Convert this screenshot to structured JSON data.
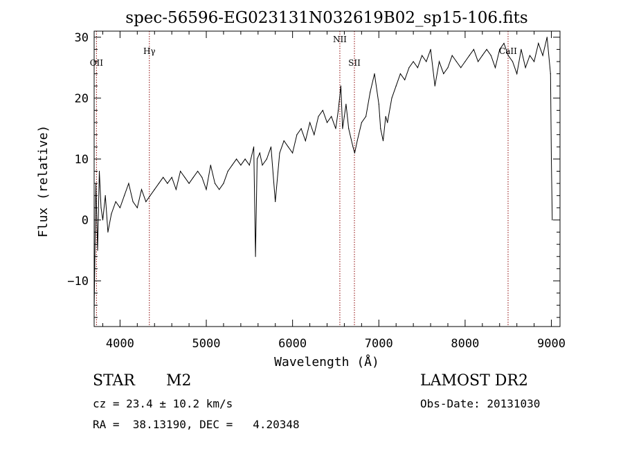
{
  "chart_data": {
    "type": "line",
    "title": "spec-56596-EG023131N032619B02_sp15-106.fits",
    "xlabel": "Wavelength (Å)",
    "ylabel": "Flux (relative)",
    "xlim": [
      3700,
      9100
    ],
    "ylim": [
      -17.5,
      31
    ],
    "grid": false,
    "x_ticks": [
      4000,
      5000,
      6000,
      7000,
      8000,
      9000
    ],
    "y_ticks": [
      -10,
      0,
      10,
      20,
      30
    ],
    "series": [
      {
        "x": [
          3700,
          3720,
          3740,
          3760,
          3780,
          3800,
          3830,
          3860,
          3900,
          3950,
          4000,
          4050,
          4100,
          4150,
          4200,
          4250,
          4300,
          4350,
          4400,
          4450,
          4500,
          4550,
          4600,
          4650,
          4700,
          4750,
          4800,
          4850,
          4900,
          4950,
          5000,
          5050,
          5100,
          5150,
          5200,
          5250,
          5300,
          5350,
          5400,
          5450,
          5500,
          5550,
          5570,
          5590,
          5620,
          5650,
          5700,
          5750,
          5800,
          5850,
          5900,
          5950,
          6000,
          6050,
          6100,
          6150,
          6200,
          6250,
          6300,
          6350,
          6400,
          6450,
          6500,
          6530,
          6560,
          6580,
          6600,
          6620,
          6650,
          6700,
          6720,
          6750,
          6800,
          6850,
          6900,
          6950,
          7000,
          7020,
          7050,
          7080,
          7100,
          7150,
          7200,
          7250,
          7300,
          7350,
          7400,
          7450,
          7500,
          7550,
          7600,
          7650,
          7700,
          7750,
          7800,
          7850,
          7900,
          7950,
          8000,
          8050,
          8100,
          8150,
          8200,
          8250,
          8300,
          8350,
          8400,
          8450,
          8500,
          8550,
          8600,
          8650,
          8700,
          8750,
          8800,
          8850,
          8900,
          8950,
          8990,
          9000,
          9010
        ],
        "y": [
          -15,
          6,
          -5,
          8,
          2,
          0,
          4,
          -2,
          1,
          3,
          2,
          4,
          6,
          3,
          2,
          5,
          3,
          4,
          5,
          6,
          7,
          6,
          7,
          5,
          8,
          7,
          6,
          7,
          8,
          7,
          5,
          9,
          6,
          5,
          6,
          8,
          9,
          10,
          9,
          10,
          9,
          12,
          -6,
          10,
          11,
          9,
          10,
          12,
          3,
          11,
          13,
          12,
          11,
          14,
          15,
          13,
          16,
          14,
          17,
          18,
          16,
          17,
          15,
          18,
          22,
          15,
          17,
          19,
          15,
          12,
          11,
          13,
          16,
          17,
          21,
          24,
          19,
          15,
          13,
          17,
          16,
          20,
          22,
          24,
          23,
          25,
          26,
          25,
          27,
          26,
          28,
          22,
          26,
          24,
          25,
          27,
          26,
          25,
          26,
          27,
          28,
          26,
          27,
          28,
          27,
          25,
          28,
          29,
          27,
          26,
          24,
          28,
          25,
          27,
          26,
          29,
          27,
          30,
          24,
          10,
          0
        ]
      }
    ],
    "line_markers": [
      {
        "label": "OII",
        "x": 3727
      },
      {
        "label": "Hγ",
        "x": 4340
      },
      {
        "label": "NII",
        "x": 6548
      },
      {
        "label": "SII",
        "x": 6717
      },
      {
        "label": "CaII",
        "x": 8498
      }
    ],
    "marker_color": "#8b0000",
    "line_color": "#000000"
  },
  "info": {
    "class_label": "STAR",
    "subclass_label": "M2",
    "survey_label": "LAMOST DR2",
    "cz_text": "cz = 23.4 ± 10.2 km/s",
    "obs_date_text": "Obs-Date: 20131030",
    "radec_text": "RA =  38.13190, DEC =   4.20348"
  }
}
